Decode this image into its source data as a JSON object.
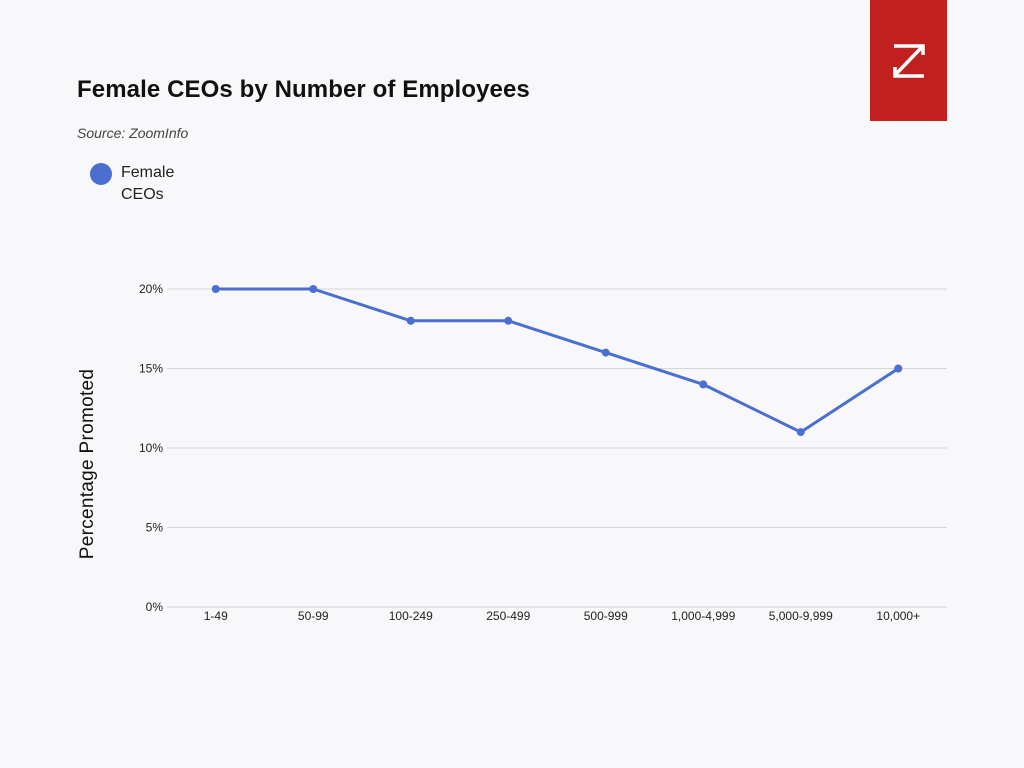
{
  "logo": {
    "icon": "zoominfo-z-icon",
    "color": "#c0211f"
  },
  "chart_data": {
    "type": "line",
    "title": "Female CEOs by Number of Employees",
    "subtitle": "Source: ZoomInfo",
    "xlabel": "",
    "ylabel": "Percentage Promoted",
    "categories": [
      "1-49",
      "50-99",
      "100-249",
      "250-499",
      "500-999",
      "1,000-4,999",
      "5,000-9,999",
      "10,000+"
    ],
    "series": [
      {
        "name": "Female CEOs",
        "color": "#4a6fd1",
        "values": [
          20,
          20,
          18,
          18,
          16,
          14,
          11,
          15
        ]
      }
    ],
    "ylim": [
      0,
      20
    ],
    "yticks": [
      0,
      5,
      10,
      15,
      20
    ],
    "ytick_labels": [
      "0%",
      "5%",
      "10%",
      "15%",
      "20%"
    ],
    "grid": true,
    "legend_position": "top-left"
  }
}
